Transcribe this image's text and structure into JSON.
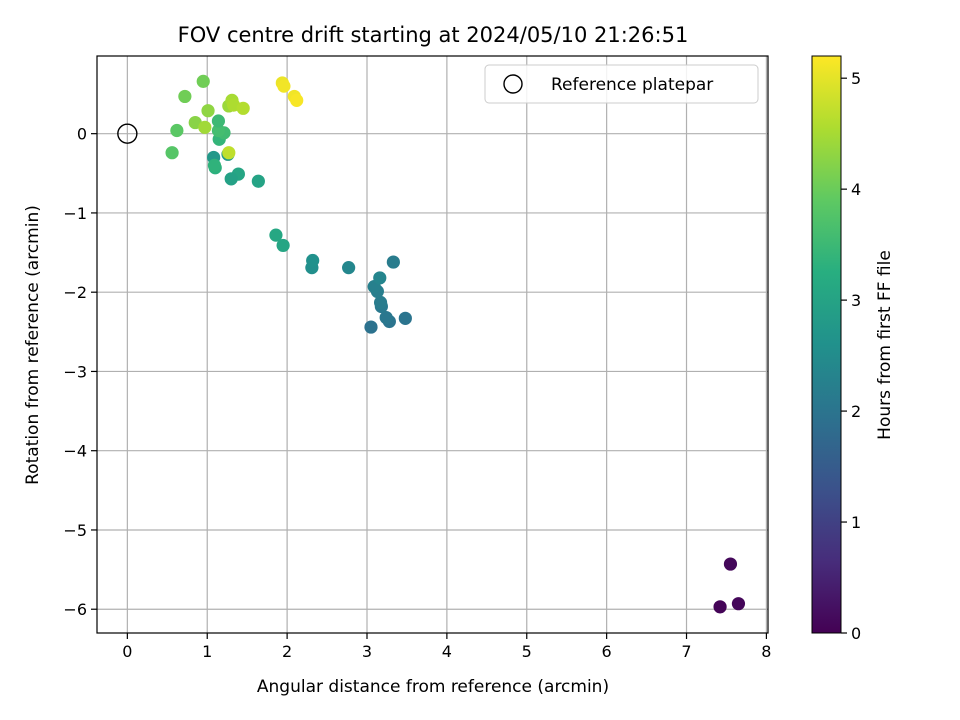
{
  "chart_data": {
    "type": "scatter",
    "title": "FOV centre drift starting at 2024/05/10 21:26:51",
    "xlabel": "Angular distance from reference (arcmin)",
    "ylabel": "Rotation from reference (arcmin)",
    "xlim": [
      -0.38,
      8.02
    ],
    "ylim": [
      -6.3,
      0.98
    ],
    "xticks": [
      0,
      1,
      2,
      3,
      4,
      5,
      6,
      7,
      8
    ],
    "yticks": [
      0,
      -1,
      -2,
      -3,
      -4,
      -5,
      -6
    ],
    "xtick_labels": [
      "0",
      "1",
      "2",
      "3",
      "4",
      "5",
      "6",
      "7",
      "8"
    ],
    "ytick_labels": [
      "0",
      "−1",
      "−2",
      "−3",
      "−4",
      "−5",
      "−6"
    ],
    "grid": true,
    "colormap": "viridis",
    "colorbar": {
      "label": "Hours from first FF file",
      "range": [
        0,
        5.2
      ],
      "ticks": [
        0,
        1,
        2,
        3,
        4,
        5
      ],
      "tick_labels": [
        "0",
        "1",
        "2",
        "3",
        "4",
        "5"
      ]
    },
    "legend": {
      "position": "top-right",
      "entries": [
        {
          "label": "Reference platepar",
          "marker": "open-circle"
        }
      ]
    },
    "reference_point": {
      "x": 0,
      "y": 0
    },
    "points": [
      {
        "x": 7.55,
        "y": -5.43,
        "hours": 0.1
      },
      {
        "x": 7.42,
        "y": -5.97,
        "hours": 0.05
      },
      {
        "x": 7.65,
        "y": -5.93,
        "hours": 0.08
      },
      {
        "x": 3.05,
        "y": -2.44,
        "hours": 1.95
      },
      {
        "x": 3.28,
        "y": -2.37,
        "hours": 2.0
      },
      {
        "x": 3.24,
        "y": -2.32,
        "hours": 2.05
      },
      {
        "x": 3.48,
        "y": -2.33,
        "hours": 2.0
      },
      {
        "x": 3.18,
        "y": -2.18,
        "hours": 2.1
      },
      {
        "x": 3.17,
        "y": -2.13,
        "hours": 2.15
      },
      {
        "x": 3.13,
        "y": -1.99,
        "hours": 2.2
      },
      {
        "x": 3.09,
        "y": -1.93,
        "hours": 2.25
      },
      {
        "x": 3.16,
        "y": -1.82,
        "hours": 2.35
      },
      {
        "x": 3.33,
        "y": -1.62,
        "hours": 2.15
      },
      {
        "x": 2.77,
        "y": -1.69,
        "hours": 2.4
      },
      {
        "x": 2.31,
        "y": -1.69,
        "hours": 2.55
      },
      {
        "x": 2.32,
        "y": -1.6,
        "hours": 2.6
      },
      {
        "x": 1.95,
        "y": -1.41,
        "hours": 3.05
      },
      {
        "x": 1.86,
        "y": -1.28,
        "hours": 3.1
      },
      {
        "x": 1.64,
        "y": -0.6,
        "hours": 3.0
      },
      {
        "x": 1.39,
        "y": -0.51,
        "hours": 3.05
      },
      {
        "x": 1.3,
        "y": -0.57,
        "hours": 2.95
      },
      {
        "x": 1.26,
        "y": -0.26,
        "hours": 2.8
      },
      {
        "x": 1.08,
        "y": -0.3,
        "hours": 2.75
      },
      {
        "x": 1.1,
        "y": -0.43,
        "hours": 3.3
      },
      {
        "x": 1.09,
        "y": -0.4,
        "hours": 3.35
      },
      {
        "x": 1.15,
        "y": -0.07,
        "hours": 3.4
      },
      {
        "x": 1.21,
        "y": 0.01,
        "hours": 3.55
      },
      {
        "x": 1.14,
        "y": 0.04,
        "hours": 3.6
      },
      {
        "x": 1.14,
        "y": 0.16,
        "hours": 3.5
      },
      {
        "x": 0.56,
        "y": -0.24,
        "hours": 3.8
      },
      {
        "x": 0.62,
        "y": 0.04,
        "hours": 3.85
      },
      {
        "x": 0.72,
        "y": 0.47,
        "hours": 4.05
      },
      {
        "x": 0.85,
        "y": 0.14,
        "hours": 4.25
      },
      {
        "x": 0.95,
        "y": 0.66,
        "hours": 4.05
      },
      {
        "x": 0.97,
        "y": 0.08,
        "hours": 4.45
      },
      {
        "x": 1.01,
        "y": 0.29,
        "hours": 4.3
      },
      {
        "x": 1.27,
        "y": -0.24,
        "hours": 4.7
      },
      {
        "x": 1.27,
        "y": 0.35,
        "hours": 4.4
      },
      {
        "x": 1.31,
        "y": 0.42,
        "hours": 4.5
      },
      {
        "x": 1.33,
        "y": 0.36,
        "hours": 4.55
      },
      {
        "x": 1.45,
        "y": 0.32,
        "hours": 4.6
      },
      {
        "x": 1.94,
        "y": 0.64,
        "hours": 5.05
      },
      {
        "x": 1.96,
        "y": 0.6,
        "hours": 5.1
      },
      {
        "x": 2.09,
        "y": 0.47,
        "hours": 5.1
      },
      {
        "x": 2.12,
        "y": 0.42,
        "hours": 5.15
      }
    ]
  }
}
